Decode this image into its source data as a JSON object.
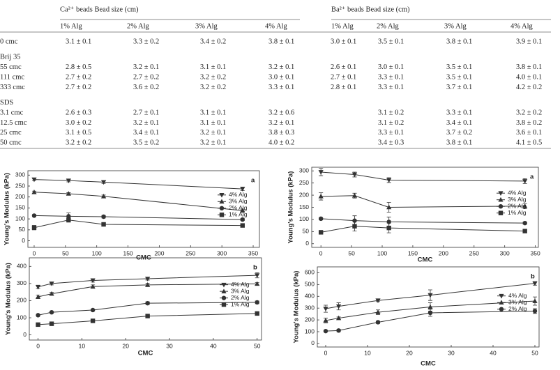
{
  "table": {
    "groups": [
      {
        "title": "Ca²⁺ beads Bead size (cm)",
        "columns": [
          "1% Alg",
          "2% Alg",
          "3% Alg",
          "4% Alg"
        ]
      },
      {
        "title": "Ba²⁺ beads Bead size (cm)",
        "columns": [
          "1% Alg",
          "2% Alg",
          "3% Alg",
          "4% Alg"
        ]
      }
    ],
    "rows": [
      {
        "label": "0 cmc",
        "cells": [
          "3.1 ± 0.1",
          "3.3 ± 0.2",
          "3.4 ± 0.2",
          "3.8 ± 0.1",
          "3.0 ± 0.1",
          "3.5 ± 0.1",
          "3.8 ± 0.1",
          "3.9 ± 0.1"
        ]
      }
    ],
    "sections": [
      {
        "title": "Brij 35",
        "rows": [
          {
            "label": "55 cmc",
            "cells": [
              "2.8 ± 0.5",
              "3.2 ± 0.1",
              "3.1 ± 0.1",
              "3.2 ± 0.1",
              "2.6 ± 0.1",
              "3.0 ± 0.1",
              "3.5 ± 0.1",
              "3.8 ± 0.1"
            ]
          },
          {
            "label": "111 cmc",
            "cells": [
              "2.7 ± 0.2",
              "2.7 ± 0.2",
              "3.2 ± 0.2",
              "3.0 ± 0.1",
              "2.7 ± 0.1",
              "3.3 ± 0.1",
              "3.5 ± 0.1",
              "4.0 ± 0.1"
            ]
          },
          {
            "label": "333 cmc",
            "cells": [
              "2.7 ± 0.2",
              "3.6 ± 0.2",
              "3.2 ± 0.2",
              "3.3 ± 0.1",
              "2.8 ± 0.1",
              "3.3 ± 0.1",
              "3.7 ± 0.1",
              "4.2 ± 0.2"
            ]
          }
        ]
      },
      {
        "title": "SDS",
        "rows": [
          {
            "label": "3.1 cmc",
            "cells": [
              "2.6 ± 0.3",
              "2.7 ± 0.1",
              "3.1 ± 0.1",
              "3.2 ± 0.6",
              null,
              "3.1 ± 0.2",
              "3.3 ± 0.1",
              "3.2 ± 0.2"
            ]
          },
          {
            "label": "12.5 cmc",
            "cells": [
              "3.0 ± 0.2",
              "3.2 ± 0.1",
              "3.1 ± 0.1",
              "3.2 ± 0.1",
              null,
              "3.1 ± 0.2",
              "3.4 ± 0.1",
              "3.8 ± 0.2"
            ]
          },
          {
            "label": "25 cmc",
            "cells": [
              "3.1 ± 0.5",
              "3.4 ± 0.1",
              "3.2 ± 0.1",
              "3.8 ± 0.3",
              null,
              "3.3 ± 0.1",
              "3.7 ± 0.2",
              "3.6 ± 0.1"
            ]
          },
          {
            "label": "50 cmc",
            "cells": [
              "3.2 ± 0.2",
              "3.5 ± 0.2",
              "3.2 ± 0.1",
              "4.0 ± 0.2",
              null,
              "3.4 ± 0.3",
              "3.8 ± 0.1",
              "4.1 ± 0.5"
            ]
          }
        ]
      }
    ]
  },
  "chart_data": [
    {
      "type": "line",
      "panel": "a",
      "x_label": "CMC",
      "y_label": "Young's Modulus (kPa)",
      "legend": "right",
      "x": [
        0,
        55,
        111,
        333
      ],
      "xlim": [
        -10,
        360
      ],
      "ylim": [
        -30,
        320
      ],
      "xticks": [
        0,
        50,
        100,
        150,
        200,
        250,
        300,
        350
      ],
      "yticks": [
        0,
        50,
        100,
        150,
        200,
        250,
        300
      ],
      "series": [
        {
          "name": "4% Alg",
          "marker": "triangle-down",
          "color": "#333",
          "values": [
            280,
            275,
            268,
            237
          ],
          "errors": [
            5,
            6,
            6,
            8
          ]
        },
        {
          "name": "3% Alg",
          "marker": "triangle-up",
          "color": "#333",
          "values": [
            222,
            215,
            203,
            138
          ],
          "errors": [
            5,
            5,
            6,
            4
          ]
        },
        {
          "name": "2% Alg",
          "marker": "circle",
          "color": "#333",
          "values": [
            115,
            112,
            110,
            97
          ],
          "errors": [
            4,
            15,
            6,
            5
          ]
        },
        {
          "name": "1% Alg",
          "marker": "square",
          "color": "#333",
          "values": [
            60,
            95,
            75,
            70
          ],
          "errors": [
            10,
            10,
            4,
            4
          ]
        }
      ]
    },
    {
      "type": "line",
      "panel": "a",
      "x_label": "CMC",
      "y_label": "Young's Modulus (kPa)",
      "legend": "right",
      "x": [
        0,
        55,
        111,
        333
      ],
      "xlim": [
        -15,
        355
      ],
      "ylim": [
        -15,
        315
      ],
      "xticks": [
        0,
        50,
        100,
        150,
        200,
        250,
        300,
        350
      ],
      "yticks": [
        0,
        50,
        100,
        150,
        200,
        250,
        300
      ],
      "series": [
        {
          "name": "4% Alg",
          "marker": "triangle-down",
          "color": "#333",
          "values": [
            295,
            285,
            262,
            258
          ],
          "errors": [
            15,
            10,
            10,
            10
          ]
        },
        {
          "name": "3% Alg",
          "marker": "triangle-up",
          "color": "#333",
          "values": [
            195,
            198,
            150,
            155
          ],
          "errors": [
            15,
            10,
            20,
            10
          ]
        },
        {
          "name": "2% Alg",
          "marker": "circle",
          "color": "#333",
          "values": [
            103,
            95,
            90,
            85
          ],
          "errors": [
            5,
            20,
            20,
            5
          ]
        },
        {
          "name": "1% Alg",
          "marker": "square",
          "color": "#333",
          "values": [
            47,
            72,
            65,
            52
          ],
          "errors": [
            5,
            20,
            20,
            5
          ]
        }
      ]
    },
    {
      "type": "line",
      "panel": "b",
      "x_label": "CMC",
      "y_label": "Young's Modulus (kPa)",
      "legend": "right",
      "x": [
        0,
        3.1,
        12.5,
        25,
        50
      ],
      "xlim": [
        -2,
        51
      ],
      "ylim": [
        -30,
        450
      ],
      "xticks": [
        0,
        10,
        20,
        30,
        40,
        50
      ],
      "yticks": [
        0,
        100,
        200,
        300,
        400
      ],
      "series": [
        {
          "name": "4% Alg",
          "marker": "triangle-down",
          "color": "#333",
          "values": [
            280,
            300,
            318,
            328,
            348
          ],
          "errors": [
            10,
            8,
            10,
            8,
            15
          ]
        },
        {
          "name": "3% Alg",
          "marker": "triangle-up",
          "color": "#333",
          "values": [
            222,
            240,
            282,
            292,
            298
          ],
          "errors": [
            10,
            8,
            10,
            10,
            8
          ]
        },
        {
          "name": "2% Alg",
          "marker": "circle",
          "color": "#333",
          "values": [
            115,
            132,
            145,
            185,
            190
          ],
          "errors": [
            5,
            5,
            5,
            8,
            8
          ]
        },
        {
          "name": "1% Alg",
          "marker": "square",
          "color": "#333",
          "values": [
            60,
            65,
            82,
            110,
            125
          ],
          "errors": [
            8,
            8,
            5,
            5,
            8
          ]
        }
      ]
    },
    {
      "type": "line",
      "panel": "b",
      "x_label": "CMC",
      "y_label": "Young's Modulus (kPa)",
      "legend": "right",
      "x": [
        0,
        3.1,
        12.5,
        25,
        50
      ],
      "xlim": [
        -2,
        51
      ],
      "ylim": [
        -30,
        650
      ],
      "xticks": [
        0,
        10,
        20,
        30,
        40,
        50
      ],
      "yticks": [
        0,
        100,
        200,
        300,
        400,
        500,
        600
      ],
      "series": [
        {
          "name": "4% Alg",
          "marker": "triangle-down",
          "color": "#333",
          "values": [
            295,
            315,
            365,
            410,
            510
          ],
          "errors": [
            30,
            30,
            10,
            45,
            15
          ]
        },
        {
          "name": "3% Alg",
          "marker": "triangle-up",
          "color": "#333",
          "values": [
            195,
            215,
            265,
            310,
            360
          ],
          "errors": [
            20,
            10,
            20,
            35,
            35
          ]
        },
        {
          "name": "2% Alg",
          "marker": "circle",
          "color": "#333",
          "values": [
            105,
            110,
            180,
            260,
            275
          ],
          "errors": [
            5,
            10,
            10,
            30,
            20
          ]
        }
      ]
    }
  ]
}
